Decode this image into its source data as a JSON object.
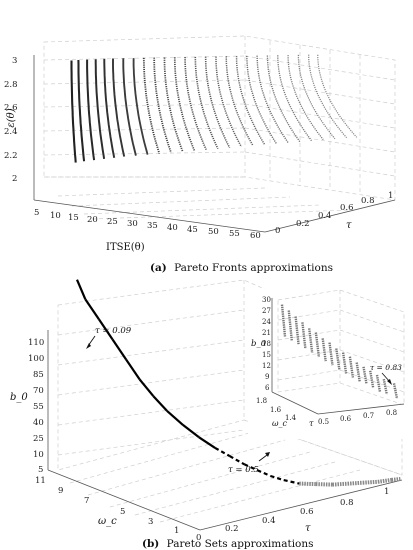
{
  "chart_data": [
    {
      "type": "scatter",
      "title": "",
      "caption_tag": "(a)",
      "caption": "Pareto Fronts approximations",
      "xlabel": "ITSE(θ)",
      "ylabel": "τ",
      "zlabel": "ε(θ)",
      "xticks": [
        "5",
        "10",
        "15",
        "20",
        "25",
        "30",
        "35",
        "40",
        "45",
        "50",
        "55",
        "60"
      ],
      "yticks": [
        "0",
        "0.2",
        "0.4",
        "0.6",
        "0.8",
        "1"
      ],
      "zticks": [
        "2",
        "2.2",
        "2.4",
        "2.6",
        "2.8",
        "3"
      ],
      "xlim": [
        3,
        62
      ],
      "ylim": [
        0,
        1
      ],
      "zlim": [
        1.9,
        3.15
      ],
      "series": [
        {
          "points_per_front": "τ from 0.09 to 0.83",
          "tau_values": [
            0.09,
            0.12,
            0.15,
            0.18,
            0.21,
            0.24,
            0.27,
            0.3,
            0.33,
            0.36,
            0.39,
            0.42,
            0.45,
            0.48,
            0.51,
            0.54,
            0.57,
            0.6,
            0.63,
            0.66,
            0.69,
            0.72,
            0.75,
            0.78,
            0.81,
            0.83
          ],
          "itse_start": [
            5,
            6,
            7.5,
            9,
            10.5,
            12,
            14,
            16,
            18,
            20,
            22,
            24,
            26,
            28,
            30,
            32,
            34,
            36,
            38,
            40,
            42,
            44,
            46,
            48,
            50,
            52
          ],
          "eps_top": 3.05,
          "eps_bottom": 2.1
        }
      ]
    },
    {
      "type": "scatter",
      "title": "",
      "caption_tag": "(b)",
      "caption": "Pareto Sets approximations",
      "xlabel": "τ",
      "ylabel": "ω_c",
      "zlabel": "b_0",
      "xticks": [
        "0",
        "0.2",
        "0.4",
        "0.6",
        "0.8",
        "1"
      ],
      "yticks": [
        "1",
        "3",
        "5",
        "7",
        "9",
        "11"
      ],
      "zticks": [
        "5",
        "10",
        "25",
        "40",
        "55",
        "70",
        "85",
        "100",
        "110"
      ],
      "annotations": [
        {
          "text": "τ = 0.09",
          "tau": 0.09
        },
        {
          "text": "τ = 0.5",
          "tau": 0.5
        }
      ],
      "series": [
        {
          "tau": [
            0.09,
            0.1,
            0.12,
            0.14,
            0.16,
            0.18,
            0.2,
            0.22,
            0.25,
            0.28,
            0.31,
            0.34,
            0.37,
            0.4,
            0.43,
            0.46,
            0.5,
            0.55,
            0.6,
            0.65,
            0.7,
            0.75,
            0.8,
            0.83
          ],
          "omega_c": [
            11,
            10.6,
            10,
            9.4,
            8.8,
            8.2,
            7.6,
            7,
            6.4,
            5.8,
            5.2,
            4.7,
            4.2,
            3.8,
            3.4,
            3,
            2.6,
            2.3,
            2,
            1.8,
            1.6,
            1.4,
            1.3,
            1.2
          ],
          "b0": [
            110,
            100,
            90,
            80,
            70,
            60,
            52,
            45,
            38,
            32,
            27,
            23,
            19,
            16,
            13,
            11,
            9,
            8,
            7,
            6.5,
            6,
            5.5,
            5.2,
            5
          ]
        }
      ],
      "inset": {
        "xlabel": "τ",
        "ylabel": "ω_c",
        "zlabel": "b_0",
        "xticks": [
          "0.5",
          "0.6",
          "0.7",
          "0.8"
        ],
        "yticks": [
          "1.4",
          "1.6",
          "1.8"
        ],
        "zticks": [
          "6",
          "9",
          "12",
          "15",
          "18",
          "21",
          "24",
          "27",
          "30"
        ],
        "annotation": "τ = 0.83",
        "tau_values": [
          0.5,
          0.52,
          0.54,
          0.56,
          0.58,
          0.6,
          0.62,
          0.64,
          0.66,
          0.68,
          0.7,
          0.72,
          0.74,
          0.76,
          0.78,
          0.8,
          0.83
        ],
        "b0_top": [
          28,
          26.5,
          25,
          23.5,
          22,
          21,
          19.5,
          18.5,
          17,
          16,
          15,
          13.5,
          12.5,
          11.5,
          10.5,
          9.5,
          8.5
        ],
        "b0_bottom": [
          21,
          20,
          19,
          18,
          17,
          16,
          15,
          14,
          13,
          12,
          11,
          10,
          9.5,
          8.5,
          7.5,
          7,
          6
        ]
      }
    }
  ]
}
